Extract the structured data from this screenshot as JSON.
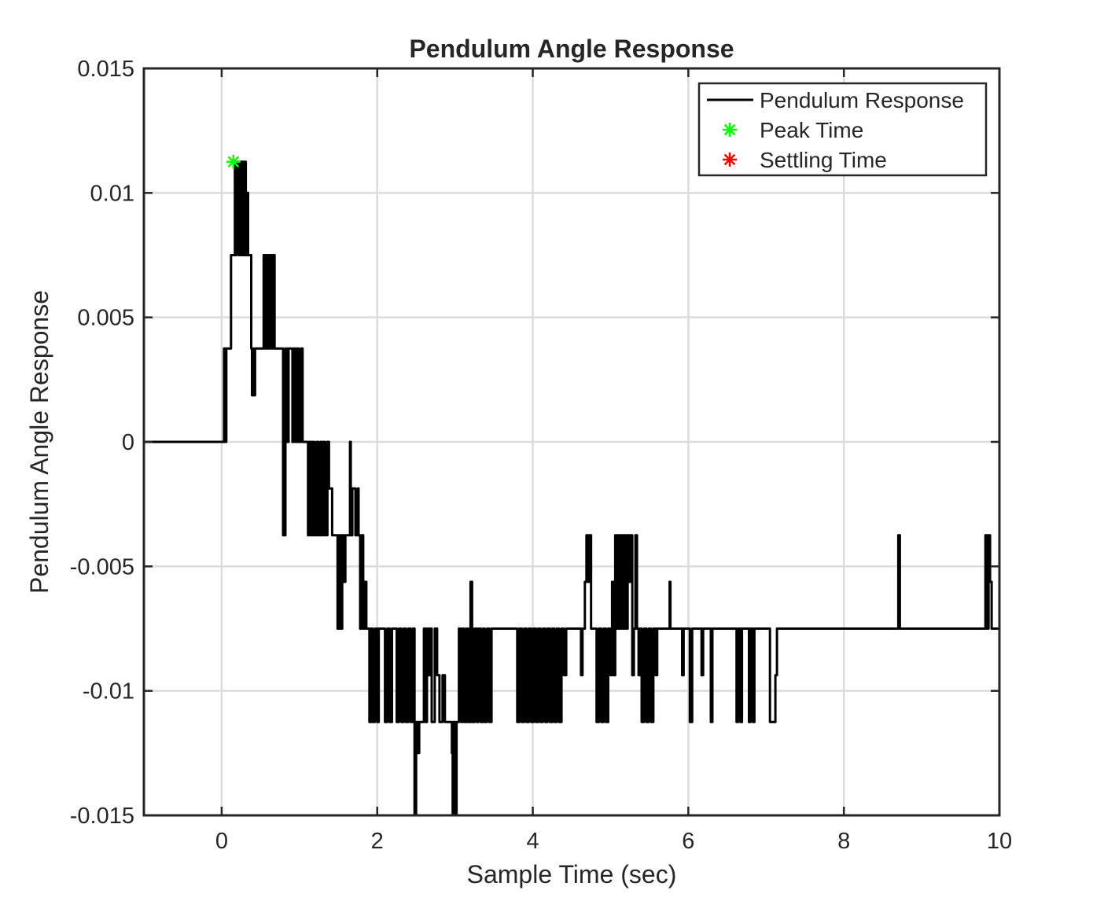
{
  "chart_data": {
    "type": "line",
    "title": "Pendulum Angle Response",
    "xlabel": "Sample Time (sec)",
    "ylabel": "Pendulum Angle Response",
    "xlim": [
      -1,
      10
    ],
    "ylim": [
      -0.015,
      0.015
    ],
    "xticks": [
      0,
      2,
      4,
      6,
      8,
      10
    ],
    "xtick_labels": [
      "0",
      "2",
      "4",
      "6",
      "8",
      "10"
    ],
    "yticks": [
      -0.015,
      -0.01,
      -0.005,
      0,
      0.005,
      0.01,
      0.015
    ],
    "ytick_labels": [
      "-0.015",
      "-0.01",
      "-0.005",
      "0",
      "0.005",
      "0.01",
      "0.015"
    ],
    "grid": true,
    "legend_position": "top-right",
    "legend": [
      {
        "label": "Pendulum Response",
        "marker": "line",
        "color": "#000000"
      },
      {
        "label": "Peak Time",
        "marker": "asterisk",
        "color": "#00ff00"
      },
      {
        "label": "Settling Time",
        "marker": "asterisk",
        "color": "#ff0000"
      }
    ],
    "series": [
      {
        "name": "Pendulum Response",
        "color": "#000000",
        "points": [
          [
            -1,
            0
          ],
          [
            0,
            0
          ],
          [
            0.02,
            0
          ],
          [
            0.03,
            0.00375
          ],
          [
            0.05,
            0
          ],
          [
            0.06,
            0.00375
          ],
          [
            0.1,
            0.00375
          ],
          [
            0.12,
            0.0075
          ],
          [
            0.16,
            0.0075
          ],
          [
            0.17,
            0.01125
          ],
          [
            0.18,
            0.0075
          ],
          [
            0.19,
            0.01125
          ],
          [
            0.22,
            0.0075
          ],
          [
            0.24,
            0.01125
          ],
          [
            0.26,
            0.0075
          ],
          [
            0.27,
            0.01125
          ],
          [
            0.29,
            0.0075
          ],
          [
            0.3,
            0.01125
          ],
          [
            0.31,
            0.0075
          ],
          [
            0.32,
            0.01
          ],
          [
            0.34,
            0.0075
          ],
          [
            0.36,
            0.0075
          ],
          [
            0.38,
            0.00375
          ],
          [
            0.39,
            0.00187
          ],
          [
            0.41,
            0.00375
          ],
          [
            0.42,
            0.00187
          ],
          [
            0.43,
            0.00375
          ],
          [
            0.52,
            0.00375
          ],
          [
            0.54,
            0.0075
          ],
          [
            0.56,
            0.00375
          ],
          [
            0.58,
            0.0075
          ],
          [
            0.6,
            0.00375
          ],
          [
            0.62,
            0.0075
          ],
          [
            0.64,
            0.00375
          ],
          [
            0.66,
            0.0075
          ],
          [
            0.68,
            0.00375
          ],
          [
            0.7,
            0.00375
          ],
          [
            0.72,
            0.00375
          ],
          [
            0.78,
            0.00375
          ],
          [
            0.79,
            -0.00375
          ],
          [
            0.82,
            0.00375
          ],
          [
            0.84,
            0
          ],
          [
            0.86,
            0.00375
          ],
          [
            0.9,
            0.00375
          ],
          [
            0.91,
            0
          ],
          [
            0.93,
            0.00375
          ],
          [
            0.95,
            0
          ],
          [
            0.97,
            0.00375
          ],
          [
            0.99,
            0
          ],
          [
            1.02,
            0.00375
          ],
          [
            1.04,
            0
          ],
          [
            1.1,
            0
          ],
          [
            1.11,
            -0.00375
          ],
          [
            1.13,
            0
          ],
          [
            1.15,
            -0.00375
          ],
          [
            1.17,
            0
          ],
          [
            1.19,
            -0.00375
          ],
          [
            1.22,
            0
          ],
          [
            1.24,
            -0.00375
          ],
          [
            1.27,
            0
          ],
          [
            1.29,
            -0.00375
          ],
          [
            1.31,
            0
          ],
          [
            1.33,
            -0.00375
          ],
          [
            1.36,
            0
          ],
          [
            1.38,
            -0.00187
          ],
          [
            1.42,
            -0.00375
          ],
          [
            1.48,
            -0.00375
          ],
          [
            1.49,
            -0.0075
          ],
          [
            1.51,
            -0.00375
          ],
          [
            1.53,
            -0.0075
          ],
          [
            1.55,
            -0.00375
          ],
          [
            1.57,
            -0.00562
          ],
          [
            1.59,
            -0.00375
          ],
          [
            1.62,
            -0.00375
          ],
          [
            1.65,
            0
          ],
          [
            1.66,
            -0.00375
          ],
          [
            1.68,
            -0.00187
          ],
          [
            1.72,
            -0.00375
          ],
          [
            1.75,
            -0.00187
          ],
          [
            1.76,
            -0.00375
          ],
          [
            1.78,
            -0.0075
          ],
          [
            1.8,
            -0.00375
          ],
          [
            1.82,
            -0.0075
          ],
          [
            1.84,
            -0.00562
          ],
          [
            1.86,
            -0.0075
          ],
          [
            1.88,
            -0.0075
          ],
          [
            1.9,
            -0.01125
          ],
          [
            1.92,
            -0.0075
          ],
          [
            1.94,
            -0.01125
          ],
          [
            1.97,
            -0.0075
          ],
          [
            2.0,
            -0.01125
          ],
          [
            2.02,
            -0.0075
          ],
          [
            2.05,
            -0.0075
          ],
          [
            2.08,
            -0.0075
          ],
          [
            2.1,
            -0.01125
          ],
          [
            2.13,
            -0.0075
          ],
          [
            2.16,
            -0.01125
          ],
          [
            2.19,
            -0.0075
          ],
          [
            2.24,
            -0.0075
          ],
          [
            2.25,
            -0.01125
          ],
          [
            2.28,
            -0.0075
          ],
          [
            2.31,
            -0.01125
          ],
          [
            2.34,
            -0.0075
          ],
          [
            2.37,
            -0.01125
          ],
          [
            2.4,
            -0.0075
          ],
          [
            2.43,
            -0.01125
          ],
          [
            2.46,
            -0.0075
          ],
          [
            2.48,
            -0.015
          ],
          [
            2.5,
            -0.01125
          ],
          [
            2.52,
            -0.0125
          ],
          [
            2.54,
            -0.01125
          ],
          [
            2.58,
            -0.01125
          ],
          [
            2.6,
            -0.0075
          ],
          [
            2.62,
            -0.01125
          ],
          [
            2.64,
            -0.0075
          ],
          [
            2.66,
            -0.00937
          ],
          [
            2.68,
            -0.0075
          ],
          [
            2.7,
            -0.01125
          ],
          [
            2.74,
            -0.0075
          ],
          [
            2.77,
            -0.00937
          ],
          [
            2.8,
            -0.01125
          ],
          [
            2.84,
            -0.00937
          ],
          [
            2.87,
            -0.01125
          ],
          [
            2.9,
            -0.01125
          ],
          [
            2.95,
            -0.01125
          ],
          [
            2.96,
            -0.0125
          ],
          [
            2.97,
            -0.015
          ],
          [
            2.98,
            -0.01125
          ],
          [
            3.0,
            -0.015
          ],
          [
            3.02,
            -0.01125
          ],
          [
            3.05,
            -0.0075
          ],
          [
            3.08,
            -0.01125
          ],
          [
            3.1,
            -0.0075
          ],
          [
            3.12,
            -0.01125
          ],
          [
            3.15,
            -0.0075
          ],
          [
            3.17,
            -0.01125
          ],
          [
            3.2,
            -0.00562
          ],
          [
            3.22,
            -0.01125
          ],
          [
            3.25,
            -0.0075
          ],
          [
            3.28,
            -0.01125
          ],
          [
            3.3,
            -0.0075
          ],
          [
            3.33,
            -0.01125
          ],
          [
            3.36,
            -0.0075
          ],
          [
            3.38,
            -0.01125
          ],
          [
            3.41,
            -0.0075
          ],
          [
            3.44,
            -0.01125
          ],
          [
            3.47,
            -0.0075
          ],
          [
            3.5,
            -0.0075
          ],
          [
            3.75,
            -0.0075
          ],
          [
            3.8,
            -0.01125
          ],
          [
            3.83,
            -0.0075
          ],
          [
            3.86,
            -0.01125
          ],
          [
            3.89,
            -0.0075
          ],
          [
            3.92,
            -0.01125
          ],
          [
            3.95,
            -0.0075
          ],
          [
            3.98,
            -0.01125
          ],
          [
            4.01,
            -0.0075
          ],
          [
            4.04,
            -0.01125
          ],
          [
            4.07,
            -0.0075
          ],
          [
            4.1,
            -0.01125
          ],
          [
            4.13,
            -0.0075
          ],
          [
            4.16,
            -0.01125
          ],
          [
            4.19,
            -0.0075
          ],
          [
            4.22,
            -0.01125
          ],
          [
            4.25,
            -0.0075
          ],
          [
            4.28,
            -0.01125
          ],
          [
            4.31,
            -0.0075
          ],
          [
            4.34,
            -0.01125
          ],
          [
            4.37,
            -0.0075
          ],
          [
            4.4,
            -0.00937
          ],
          [
            4.43,
            -0.0075
          ],
          [
            4.6,
            -0.0075
          ],
          [
            4.62,
            -0.00937
          ],
          [
            4.64,
            -0.0075
          ],
          [
            4.66,
            -0.0075
          ],
          [
            4.67,
            -0.00562
          ],
          [
            4.69,
            -0.00375
          ],
          [
            4.71,
            -0.00562
          ],
          [
            4.73,
            -0.00375
          ],
          [
            4.75,
            -0.0075
          ],
          [
            4.8,
            -0.0075
          ],
          [
            4.82,
            -0.01125
          ],
          [
            4.85,
            -0.0075
          ],
          [
            4.88,
            -0.01125
          ],
          [
            4.91,
            -0.0075
          ],
          [
            4.94,
            -0.01125
          ],
          [
            4.97,
            -0.0075
          ],
          [
            5.0,
            -0.00937
          ],
          [
            5.02,
            -0.00562
          ],
          [
            5.04,
            -0.00937
          ],
          [
            5.06,
            -0.00375
          ],
          [
            5.08,
            -0.0075
          ],
          [
            5.1,
            -0.00375
          ],
          [
            5.12,
            -0.0075
          ],
          [
            5.14,
            -0.00375
          ],
          [
            5.16,
            -0.0075
          ],
          [
            5.18,
            -0.00375
          ],
          [
            5.2,
            -0.0075
          ],
          [
            5.22,
            -0.00375
          ],
          [
            5.24,
            -0.00562
          ],
          [
            5.26,
            -0.00375
          ],
          [
            5.28,
            -0.00937
          ],
          [
            5.3,
            -0.0075
          ],
          [
            5.32,
            -0.00375
          ],
          [
            5.34,
            -0.0075
          ],
          [
            5.36,
            -0.00937
          ],
          [
            5.38,
            -0.0075
          ],
          [
            5.4,
            -0.01125
          ],
          [
            5.43,
            -0.0075
          ],
          [
            5.46,
            -0.01125
          ],
          [
            5.49,
            -0.0075
          ],
          [
            5.52,
            -0.01125
          ],
          [
            5.55,
            -0.0075
          ],
          [
            5.58,
            -0.00937
          ],
          [
            5.6,
            -0.0075
          ],
          [
            5.75,
            -0.0075
          ],
          [
            5.76,
            -0.00562
          ],
          [
            5.77,
            -0.0075
          ],
          [
            5.9,
            -0.0075
          ],
          [
            5.92,
            -0.00937
          ],
          [
            5.94,
            -0.0075
          ],
          [
            5.98,
            -0.0075
          ],
          [
            6.02,
            -0.01125
          ],
          [
            6.05,
            -0.0075
          ],
          [
            6.15,
            -0.0075
          ],
          [
            6.17,
            -0.00937
          ],
          [
            6.19,
            -0.0075
          ],
          [
            6.27,
            -0.0075
          ],
          [
            6.29,
            -0.01125
          ],
          [
            6.31,
            -0.0075
          ],
          [
            6.6,
            -0.0075
          ],
          [
            6.62,
            -0.01125
          ],
          [
            6.64,
            -0.0075
          ],
          [
            6.67,
            -0.01125
          ],
          [
            6.69,
            -0.0075
          ],
          [
            6.76,
            -0.0075
          ],
          [
            6.78,
            -0.01125
          ],
          [
            6.8,
            -0.0075
          ],
          [
            6.83,
            -0.01125
          ],
          [
            6.85,
            -0.0075
          ],
          [
            7.0,
            -0.0075
          ],
          [
            7.05,
            -0.01125
          ],
          [
            7.1,
            -0.01125
          ],
          [
            7.12,
            -0.00937
          ],
          [
            7.14,
            -0.0075
          ],
          [
            8.68,
            -0.0075
          ],
          [
            8.7,
            -0.00375
          ],
          [
            8.72,
            -0.0075
          ],
          [
            9.8,
            -0.0075
          ],
          [
            9.82,
            -0.00375
          ],
          [
            9.84,
            -0.0075
          ],
          [
            9.86,
            -0.00375
          ],
          [
            9.88,
            -0.00562
          ],
          [
            9.9,
            -0.0075
          ],
          [
            10.0,
            -0.0075
          ]
        ]
      }
    ],
    "markers": [
      {
        "name": "Peak Time",
        "x": 0.15,
        "y": 0.01125,
        "color": "#00ff00"
      }
    ]
  }
}
